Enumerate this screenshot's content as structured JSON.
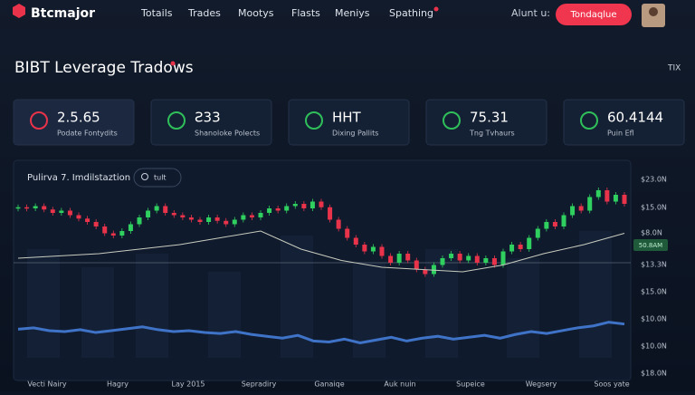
{
  "nav": {
    "brand": "Btcmajor",
    "links": [
      "Totails",
      "Trades",
      "Mootys",
      "Flasts",
      "Meniys",
      "Spathing"
    ],
    "account_label": "Alunt u:",
    "button": "Tondaqlue"
  },
  "header": {
    "title": "BIBT Leverage Tradows",
    "right": "TIX"
  },
  "cards": [
    {
      "value": "2.5.65",
      "label": "Podate Fontydits"
    },
    {
      "value": "Ƨ33",
      "label": "Shanoloke Polects"
    },
    {
      "value": "HHT",
      "label": "Dixing Pallits"
    },
    {
      "value": "75.31",
      "label": "Tng Tvhaurs"
    },
    {
      "value": "60.4144",
      "label": "Puin Efl"
    }
  ],
  "chart_data": {
    "type": "candlestick",
    "title": "Pulirva 7. Imdilstaztion",
    "search": "tult",
    "x_labels": [
      "Vecti Nairy",
      "Hagry",
      "Lay 2015",
      "Sepradiry",
      "Ganaiqe",
      "Auk nuin",
      "Supeice",
      "Wegsery",
      "Soos yate"
    ],
    "axis_labels": [
      "$23.0N",
      "$15.0N",
      "$8.0N",
      "$13.3N",
      "$15.0N",
      "$10.0N",
      "$10.0N",
      "$18.0N"
    ],
    "price_tag": "50.8AM",
    "ylim": [
      0,
      100
    ],
    "closes": [
      85,
      84,
      86,
      83,
      80,
      82,
      78,
      75,
      72,
      68,
      62,
      60,
      64,
      70,
      76,
      82,
      86,
      80,
      78,
      76,
      74,
      72,
      76,
      73,
      70,
      74,
      78,
      76,
      80,
      84,
      82,
      86,
      88,
      84,
      90,
      85,
      74,
      66,
      58,
      52,
      46,
      50,
      42,
      36,
      44,
      38,
      30,
      26,
      34,
      40,
      44,
      38,
      42,
      36,
      40,
      34,
      46,
      52,
      48,
      58,
      66,
      72,
      68,
      78,
      86,
      82,
      94,
      100,
      90,
      96,
      88
    ],
    "average": [
      40,
      42,
      44,
      48,
      52,
      58,
      64,
      48,
      38,
      32,
      30,
      28,
      34,
      44,
      52,
      62
    ],
    "volume_lim": [
      0,
      100
    ],
    "volume": [
      55,
      58,
      52,
      50,
      54,
      48,
      52,
      56,
      60,
      54,
      50,
      52,
      48,
      46,
      50,
      44,
      40,
      36,
      42,
      30,
      28,
      34,
      26,
      32,
      38,
      30,
      36,
      40,
      34,
      38,
      42,
      36,
      44,
      50,
      46,
      52,
      58,
      62,
      70,
      66
    ]
  }
}
